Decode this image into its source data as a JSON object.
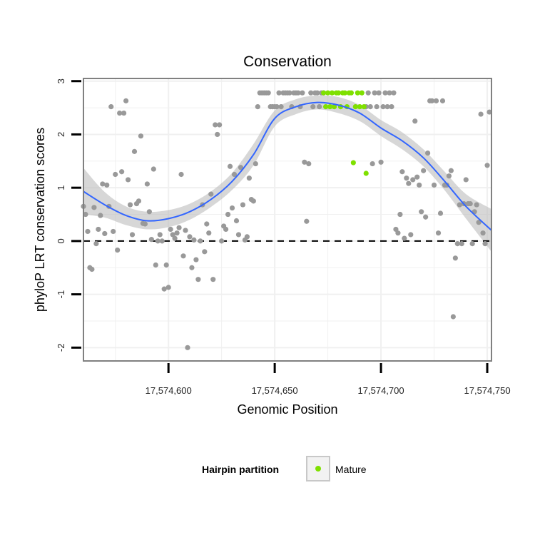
{
  "chart_data": {
    "type": "scatter",
    "title": "Conservation",
    "xlabel": "Genomic Position",
    "ylabel": "phyloP LRT conservation scores",
    "xlim": [
      17574560,
      17574752
    ],
    "ylim": [
      -2.25,
      3.05
    ],
    "xticks": [
      17574600,
      17574650,
      17574700,
      17574750
    ],
    "xtick_labels": [
      "17,574,600",
      "17,574,650",
      "17,574,700",
      "17,574,750"
    ],
    "yticks": [
      -2,
      -1,
      0,
      1,
      2,
      3
    ],
    "ytick_labels": [
      "-2",
      "-1",
      "0",
      "1",
      "2",
      "3"
    ],
    "grid": true,
    "hline": 0,
    "legend": {
      "title": "Hairpin partition",
      "placement": "bottom",
      "entries": [
        {
          "name": "Mature",
          "color": "#7fe000"
        }
      ]
    },
    "colors": {
      "other": "#999999",
      "mature": "#7fe000",
      "smooth": "#3366ff",
      "ribbon": "#bdbdbd"
    },
    "series": [
      {
        "group": "other",
        "points": [
          [
            17574560,
            0.65
          ],
          [
            17574561,
            0.5
          ],
          [
            17574562,
            0.18
          ],
          [
            17574563,
            -0.5
          ],
          [
            17574564,
            -0.53
          ],
          [
            17574565,
            0.63
          ],
          [
            17574566,
            -0.05
          ],
          [
            17574567,
            0.22
          ],
          [
            17574568,
            0.48
          ],
          [
            17574569,
            1.07
          ],
          [
            17574570,
            0.14
          ],
          [
            17574571,
            1.05
          ],
          [
            17574572,
            0.65
          ],
          [
            17574573,
            2.52
          ],
          [
            17574574,
            0.18
          ],
          [
            17574575,
            1.25
          ],
          [
            17574576,
            -0.17
          ],
          [
            17574577,
            2.4
          ],
          [
            17574578,
            1.3
          ],
          [
            17574579,
            2.4
          ],
          [
            17574580,
            2.63
          ],
          [
            17574581,
            1.15
          ],
          [
            17574582,
            0.68
          ],
          [
            17574583,
            0.12
          ],
          [
            17574584,
            1.68
          ],
          [
            17574585,
            0.7
          ],
          [
            17574586,
            0.75
          ],
          [
            17574587,
            1.97
          ],
          [
            17574588,
            0.33
          ],
          [
            17574589,
            0.32
          ],
          [
            17574590,
            1.07
          ],
          [
            17574591,
            0.55
          ],
          [
            17574592,
            0.03
          ],
          [
            17574593,
            1.35
          ],
          [
            17574594,
            -0.45
          ],
          [
            17574595,
            0.0
          ],
          [
            17574596,
            0.12
          ],
          [
            17574597,
            0.0
          ],
          [
            17574598,
            -0.9
          ],
          [
            17574599,
            -0.45
          ],
          [
            17574600,
            -0.87
          ],
          [
            17574601,
            0.22
          ],
          [
            17574602,
            0.12
          ],
          [
            17574603,
            0.05
          ],
          [
            17574604,
            0.15
          ],
          [
            17574605,
            0.25
          ],
          [
            17574606,
            1.25
          ],
          [
            17574607,
            -0.28
          ],
          [
            17574608,
            0.2
          ],
          [
            17574609,
            -2.0
          ],
          [
            17574610,
            0.08
          ],
          [
            17574611,
            -0.5
          ],
          [
            17574612,
            0.02
          ],
          [
            17574613,
            -0.35
          ],
          [
            17574614,
            -0.72
          ],
          [
            17574615,
            0.0
          ],
          [
            17574616,
            0.68
          ],
          [
            17574617,
            -0.2
          ],
          [
            17574618,
            0.32
          ],
          [
            17574619,
            0.15
          ],
          [
            17574620,
            0.88
          ],
          [
            17574621,
            -0.72
          ],
          [
            17574622,
            2.18
          ],
          [
            17574623,
            2.0
          ],
          [
            17574624,
            2.18
          ],
          [
            17574625,
            0.0
          ],
          [
            17574626,
            0.28
          ],
          [
            17574627,
            0.22
          ],
          [
            17574628,
            0.5
          ],
          [
            17574629,
            1.4
          ],
          [
            17574630,
            0.62
          ],
          [
            17574631,
            1.25
          ],
          [
            17574632,
            0.38
          ],
          [
            17574633,
            0.12
          ],
          [
            17574634,
            1.38
          ],
          [
            17574635,
            0.68
          ],
          [
            17574636,
            0.02
          ],
          [
            17574637,
            0.08
          ],
          [
            17574638,
            1.18
          ],
          [
            17574639,
            0.78
          ],
          [
            17574640,
            0.75
          ],
          [
            17574641,
            1.45
          ],
          [
            17574642,
            2.52
          ],
          [
            17574643,
            2.78
          ],
          [
            17574644,
            2.78
          ],
          [
            17574645,
            2.78
          ],
          [
            17574646,
            2.78
          ],
          [
            17574647,
            2.78
          ],
          [
            17574648,
            2.52
          ],
          [
            17574649,
            2.52
          ],
          [
            17574650,
            2.52
          ],
          [
            17574651,
            2.52
          ],
          [
            17574652,
            2.78
          ],
          [
            17574653,
            2.52
          ],
          [
            17574654,
            2.78
          ],
          [
            17574655,
            2.78
          ],
          [
            17574656,
            2.78
          ],
          [
            17574657,
            2.78
          ],
          [
            17574658,
            2.52
          ],
          [
            17574659,
            2.78
          ],
          [
            17574660,
            2.78
          ],
          [
            17574661,
            2.78
          ],
          [
            17574662,
            2.52
          ],
          [
            17574663,
            2.78
          ],
          [
            17574664,
            1.48
          ],
          [
            17574665,
            0.37
          ],
          [
            17574666,
            1.45
          ],
          [
            17574667,
            2.78
          ],
          [
            17574668,
            2.52
          ],
          [
            17574669,
            2.78
          ],
          [
            17574670,
            2.78
          ],
          [
            17574671,
            2.52
          ],
          [
            17574672,
            2.78
          ],
          [
            17574673,
            2.78
          ],
          [
            17574693,
            2.52
          ],
          [
            17574694,
            2.78
          ],
          [
            17574695,
            2.52
          ],
          [
            17574696,
            1.45
          ],
          [
            17574697,
            2.78
          ],
          [
            17574698,
            2.52
          ],
          [
            17574699,
            2.78
          ],
          [
            17574700,
            1.48
          ],
          [
            17574701,
            2.52
          ],
          [
            17574702,
            2.78
          ],
          [
            17574703,
            2.52
          ],
          [
            17574704,
            2.78
          ],
          [
            17574705,
            2.52
          ],
          [
            17574706,
            2.78
          ],
          [
            17574707,
            0.22
          ],
          [
            17574708,
            0.15
          ],
          [
            17574709,
            0.5
          ],
          [
            17574710,
            1.3
          ],
          [
            17574711,
            0.05
          ],
          [
            17574712,
            1.18
          ],
          [
            17574713,
            1.08
          ],
          [
            17574714,
            0.12
          ],
          [
            17574715,
            1.15
          ],
          [
            17574716,
            2.25
          ],
          [
            17574717,
            1.2
          ],
          [
            17574718,
            1.05
          ],
          [
            17574719,
            0.55
          ],
          [
            17574720,
            1.32
          ],
          [
            17574721,
            0.45
          ],
          [
            17574722,
            1.65
          ],
          [
            17574723,
            2.63
          ],
          [
            17574724,
            2.63
          ],
          [
            17574725,
            1.05
          ],
          [
            17574726,
            2.63
          ],
          [
            17574727,
            0.15
          ],
          [
            17574728,
            0.52
          ],
          [
            17574729,
            2.63
          ],
          [
            17574730,
            1.05
          ],
          [
            17574731,
            1.05
          ],
          [
            17574732,
            1.22
          ],
          [
            17574733,
            1.32
          ],
          [
            17574734,
            -1.42
          ],
          [
            17574735,
            -0.32
          ],
          [
            17574736,
            -0.05
          ],
          [
            17574737,
            0.68
          ],
          [
            17574738,
            -0.05
          ],
          [
            17574739,
            0.7
          ],
          [
            17574740,
            1.15
          ],
          [
            17574741,
            0.7
          ],
          [
            17574742,
            0.7
          ],
          [
            17574743,
            -0.05
          ],
          [
            17574744,
            0.55
          ],
          [
            17574745,
            0.68
          ],
          [
            17574746,
            0.35
          ],
          [
            17574747,
            2.38
          ],
          [
            17574748,
            0.15
          ],
          [
            17574749,
            -0.05
          ],
          [
            17574750,
            1.42
          ],
          [
            17574751,
            2.42
          ]
        ]
      },
      {
        "group": "mature",
        "points": [
          [
            17574673,
            2.78
          ],
          [
            17574674,
            2.52
          ],
          [
            17574675,
            2.78
          ],
          [
            17574676,
            2.52
          ],
          [
            17574677,
            2.78
          ],
          [
            17574678,
            2.52
          ],
          [
            17574679,
            2.78
          ],
          [
            17574680,
            2.78
          ],
          [
            17574681,
            2.52
          ],
          [
            17574682,
            2.78
          ],
          [
            17574683,
            2.78
          ],
          [
            17574684,
            2.52
          ],
          [
            17574685,
            2.78
          ],
          [
            17574686,
            2.78
          ],
          [
            17574687,
            1.47
          ],
          [
            17574688,
            2.52
          ],
          [
            17574689,
            2.78
          ],
          [
            17574690,
            2.52
          ],
          [
            17574691,
            2.78
          ],
          [
            17574692,
            2.52
          ],
          [
            17574693,
            1.27
          ]
        ]
      }
    ],
    "smooth": [
      [
        17574560,
        0.93,
        0.5,
        1.37
      ],
      [
        17574570,
        0.68,
        0.44,
        0.92
      ],
      [
        17574580,
        0.48,
        0.3,
        0.65
      ],
      [
        17574590,
        0.38,
        0.22,
        0.55
      ],
      [
        17574600,
        0.42,
        0.26,
        0.58
      ],
      [
        17574610,
        0.55,
        0.4,
        0.7
      ],
      [
        17574620,
        0.78,
        0.64,
        0.93
      ],
      [
        17574630,
        1.12,
        0.96,
        1.28
      ],
      [
        17574640,
        1.62,
        1.42,
        1.82
      ],
      [
        17574650,
        2.3,
        2.15,
        2.45
      ],
      [
        17574660,
        2.52,
        2.38,
        2.66
      ],
      [
        17574670,
        2.6,
        2.47,
        2.73
      ],
      [
        17574680,
        2.55,
        2.4,
        2.7
      ],
      [
        17574690,
        2.4,
        2.25,
        2.55
      ],
      [
        17574700,
        2.12,
        1.97,
        2.27
      ],
      [
        17574710,
        1.88,
        1.72,
        2.04
      ],
      [
        17574720,
        1.56,
        1.4,
        1.72
      ],
      [
        17574730,
        1.12,
        0.95,
        1.3
      ],
      [
        17574740,
        0.65,
        0.42,
        0.88
      ],
      [
        17574752,
        0.2,
        -0.2,
        0.6
      ]
    ]
  }
}
